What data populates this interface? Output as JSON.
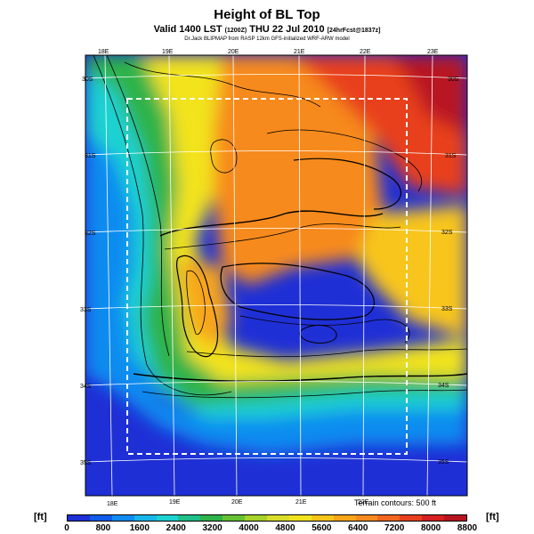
{
  "title": "Height of BL Top",
  "valid_prefix": "Valid 1400 LST",
  "valid_code": "(1200Z)",
  "valid_date": "THU 22 Jul 2010",
  "valid_fcst": "[24hrFcst@1837z]",
  "subtitle": "Dr.Jack BLIPMAP from RASP 12km GFS-initialized WRF-ARW model",
  "terrain_note": "Terrain contours: 500 ft",
  "unit": "[ft]",
  "top_ticks": [
    "18E",
    "19E",
    "20E",
    "21E",
    "22E",
    "23E"
  ],
  "bottom_ticks": [
    "18E",
    "19E",
    "20E",
    "21E",
    "22E"
  ],
  "left_ticks": [
    "30S",
    "31S",
    "32S",
    "33S",
    "34S",
    "35S"
  ],
  "right_ticks": [
    "30S",
    "31S",
    "32S",
    "33S",
    "34S",
    "35S"
  ],
  "colorbar": {
    "labels": [
      "0",
      "800",
      "1600",
      "2400",
      "3200",
      "4000",
      "4800",
      "5600",
      "6400",
      "7200",
      "8000",
      "8800"
    ],
    "colors": [
      "#1f2fd6",
      "#0f5de8",
      "#0f8cf0",
      "#18b6e8",
      "#1fd2d2",
      "#1fc08a",
      "#2fb34a",
      "#66c232",
      "#a6d22a",
      "#d8dd2a",
      "#f2e31f",
      "#f7c51a",
      "#f7a51a",
      "#f78a1f",
      "#f2661f",
      "#e8401f",
      "#d62020",
      "#b81420"
    ]
  }
}
